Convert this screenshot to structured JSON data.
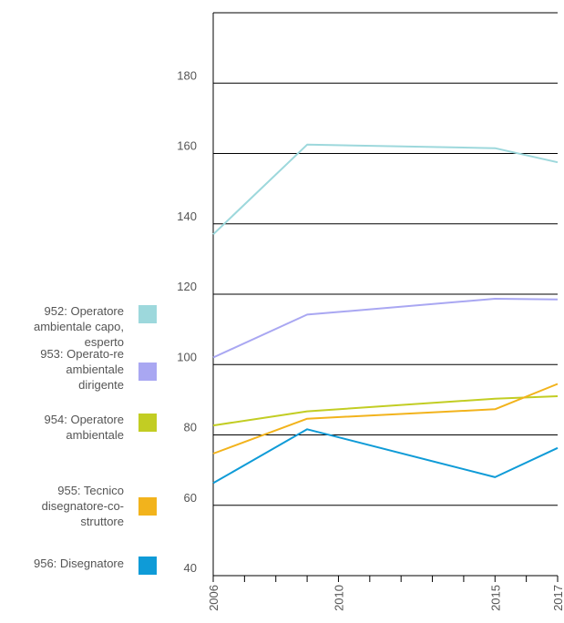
{
  "chart_data": {
    "type": "line",
    "title": "",
    "xlabel": "",
    "ylabel": "",
    "x_ticks": [
      "2006",
      "2010",
      "2015",
      "2017"
    ],
    "y_ticks": [
      "40",
      "60",
      "80",
      "100",
      "120",
      "140",
      "160",
      "180"
    ],
    "xlim": [
      2006,
      2017
    ],
    "ylim": [
      40,
      200
    ],
    "grid": "horizontal",
    "legend_position": "left",
    "series": [
      {
        "name": "952: Operatore ambientale capo, esperto",
        "color": "#9dd8dc",
        "x": [
          2006,
          2009,
          2015,
          2017
        ],
        "y": [
          137,
          162.5,
          161.5,
          157.5
        ]
      },
      {
        "name": "953: Operato-re ambientale dirigente",
        "color": "#a9a7f2",
        "x": [
          2006,
          2009,
          2015,
          2017
        ],
        "y": [
          102,
          114.2,
          118.7,
          118.5
        ]
      },
      {
        "name": "954: Operatore ambientale",
        "color": "#c2cd23",
        "x": [
          2006,
          2009,
          2015,
          2017
        ],
        "y": [
          82.7,
          86.7,
          90.3,
          91
        ]
      },
      {
        "name": "955: Tecnico disegnatore-co-struttore",
        "color": "#f2b31c",
        "x": [
          2006,
          2009,
          2015,
          2017
        ],
        "y": [
          74.7,
          84.6,
          87.3,
          94.5
        ]
      },
      {
        "name": "956: Disegnatore",
        "color": "#0f9bd7",
        "x": [
          2006,
          2009,
          2015,
          2017
        ],
        "y": [
          66.3,
          81.6,
          68,
          76.3
        ]
      }
    ]
  }
}
